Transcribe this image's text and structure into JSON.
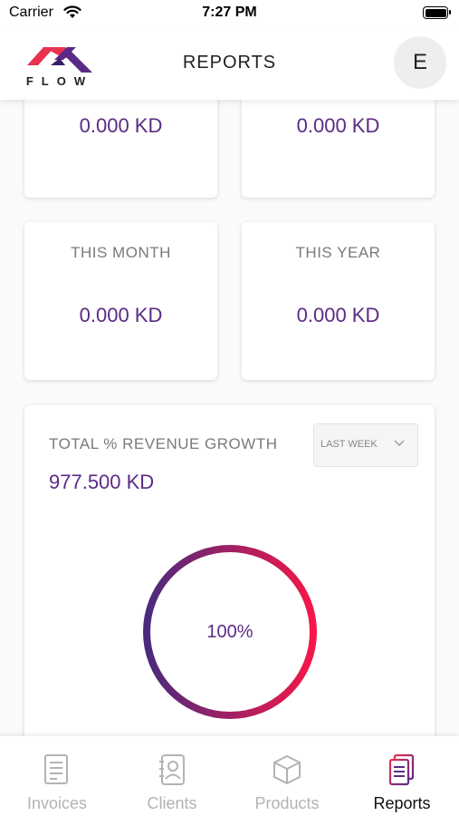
{
  "status_bar": {
    "carrier": "Carrier",
    "time": "7:27 PM"
  },
  "header": {
    "logo_text": "FLOW",
    "title": "REPORTS",
    "avatar_initial": "E"
  },
  "stats": {
    "top_left_value": "0.000 KD",
    "top_right_value": "0.000 KD",
    "month_label": "THIS MONTH",
    "month_value": "0.000 KD",
    "year_label": "THIS YEAR",
    "year_value": "0.000 KD"
  },
  "growth": {
    "title": "TOTAL % REVENUE GROWTH",
    "value": "977.500 KD",
    "period_selected": "LAST WEEK",
    "percent_label": "100%",
    "percent": 100
  },
  "tabs": [
    {
      "label": "Invoices",
      "icon": "invoices-icon",
      "active": false
    },
    {
      "label": "Clients",
      "icon": "clients-icon",
      "active": false
    },
    {
      "label": "Products",
      "icon": "products-icon",
      "active": false
    },
    {
      "label": "Reports",
      "icon": "reports-icon",
      "active": true
    }
  ],
  "colors": {
    "accent": "#5b2a86",
    "gradient_start": "#4b2a7c",
    "gradient_end": "#f5174a",
    "inactive_tab": "#b3b3b3"
  }
}
